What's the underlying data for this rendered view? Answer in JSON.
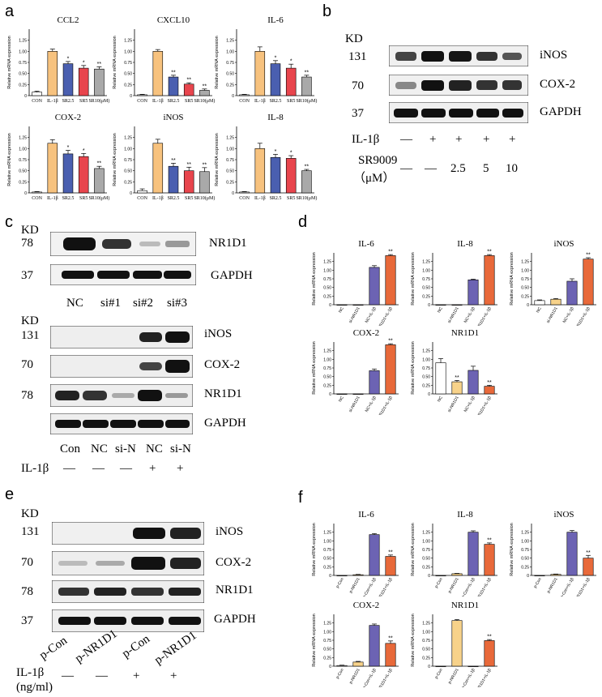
{
  "panels": {
    "a": "a",
    "b": "b",
    "c": "c",
    "d": "d",
    "e": "e",
    "f": "f"
  },
  "colors": {
    "con": "#ffffff",
    "il1b": "#f7c27e",
    "sr25": "#4a5fb0",
    "sr5": "#e8454d",
    "sr10": "#a9a9a9",
    "purple": "#6c63b3",
    "orange": "#e8693a",
    "yellowish": "#f7d28a"
  },
  "yaxis_label": "Relative mRNA expression",
  "ticks": [
    "0",
    "0.25",
    "0.50",
    "0.75",
    "1.00",
    "1.25"
  ],
  "group_a": {
    "categories": [
      "CON",
      "IL-1β",
      "SR2.5",
      "SR5",
      "SR10(μM)"
    ],
    "charts": [
      {
        "title": "CCL2",
        "values": [
          0.08,
          1.0,
          0.72,
          0.62,
          0.6
        ],
        "errors": [
          0.02,
          0.05,
          0.05,
          0.06,
          0.05
        ],
        "sig": [
          "",
          "",
          "*",
          "*",
          "**"
        ]
      },
      {
        "title": "CXCL10",
        "values": [
          0.02,
          1.0,
          0.42,
          0.26,
          0.12
        ],
        "errors": [
          0.01,
          0.04,
          0.04,
          0.03,
          0.03
        ],
        "sig": [
          "",
          "",
          "**",
          "**",
          "**"
        ]
      },
      {
        "title": "IL-6",
        "values": [
          0.02,
          1.0,
          0.72,
          0.62,
          0.42
        ],
        "errors": [
          0.01,
          0.1,
          0.07,
          0.09,
          0.04
        ],
        "sig": [
          "",
          "",
          "*",
          "*",
          "**"
        ]
      },
      {
        "title": "COX-2",
        "values": [
          0.02,
          1.12,
          0.88,
          0.82,
          0.55
        ],
        "errors": [
          0.01,
          0.08,
          0.08,
          0.07,
          0.05
        ],
        "sig": [
          "",
          "",
          "*",
          "*",
          "**"
        ]
      },
      {
        "title": "iNOS",
        "values": [
          0.05,
          1.12,
          0.6,
          0.5,
          0.48
        ],
        "errors": [
          0.04,
          0.09,
          0.07,
          0.08,
          0.09
        ],
        "sig": [
          "",
          "",
          "**",
          "**",
          "**"
        ]
      },
      {
        "title": "IL-8",
        "values": [
          0.02,
          1.0,
          0.8,
          0.78,
          0.5
        ],
        "errors": [
          0.01,
          0.12,
          0.07,
          0.06,
          0.03
        ],
        "sig": [
          "",
          "",
          "*",
          "*",
          "**"
        ]
      }
    ]
  },
  "group_d": {
    "categories": [
      "NC",
      "si-NR1D1",
      "NC+IL-1β",
      "si-NR1D1+IL-1β"
    ],
    "charts": [
      {
        "title": "IL-6",
        "values": [
          0.0,
          0.0,
          1.08,
          1.42
        ],
        "errors": [
          0,
          0,
          0.05,
          0.03
        ],
        "sig": [
          "",
          "",
          "",
          "**"
        ]
      },
      {
        "title": "IL-8",
        "values": [
          0.0,
          0.0,
          0.72,
          1.42
        ],
        "errors": [
          0,
          0,
          0.02,
          0.03
        ],
        "sig": [
          "",
          "",
          "",
          "**"
        ]
      },
      {
        "title": "iNOS",
        "values": [
          0.12,
          0.16,
          0.68,
          1.32
        ],
        "errors": [
          0.02,
          0.02,
          0.07,
          0.04
        ],
        "sig": [
          "",
          "",
          "",
          "**"
        ]
      },
      {
        "title": "COX-2",
        "values": [
          0.0,
          0.0,
          0.67,
          1.42
        ],
        "errors": [
          0,
          0,
          0.05,
          0.03
        ],
        "sig": [
          "",
          "",
          "",
          "**"
        ]
      },
      {
        "title": "NR1D1",
        "values": [
          0.9,
          0.35,
          0.68,
          0.22
        ],
        "errors": [
          0.12,
          0.04,
          0.12,
          0.03
        ],
        "sig": [
          "",
          "**",
          "",
          "**"
        ]
      }
    ]
  },
  "group_f": {
    "categories": [
      "p-Con",
      "p-NR1D1",
      "p-Con+IL-1β",
      "p-NR1D1+IL-1β"
    ],
    "charts": [
      {
        "title": "IL-6",
        "values": [
          0.0,
          0.02,
          1.18,
          0.55
        ],
        "errors": [
          0,
          0.01,
          0.03,
          0.04
        ],
        "sig": [
          "",
          "",
          "",
          "**"
        ]
      },
      {
        "title": "IL-8",
        "values": [
          0.0,
          0.05,
          1.25,
          0.9
        ],
        "errors": [
          0,
          0.01,
          0.04,
          0.04
        ],
        "sig": [
          "",
          "",
          "",
          "**"
        ]
      },
      {
        "title": "iNOS",
        "values": [
          0.0,
          0.03,
          1.25,
          0.5
        ],
        "errors": [
          0,
          0.01,
          0.05,
          0.08
        ],
        "sig": [
          "",
          "",
          "",
          "**"
        ]
      },
      {
        "title": "COX-2",
        "values": [
          0.02,
          0.12,
          1.18,
          0.66
        ],
        "errors": [
          0.01,
          0.02,
          0.04,
          0.07
        ],
        "sig": [
          "",
          "",
          "",
          "**"
        ]
      },
      {
        "title": "NR1D1",
        "values": [
          0.0,
          1.32,
          0.0,
          0.74
        ],
        "errors": [
          0,
          0.03,
          0,
          0.03
        ],
        "sig": [
          "",
          "",
          "",
          "**"
        ]
      }
    ]
  },
  "blot_b": {
    "kd_header": "KD",
    "bands": [
      {
        "kd": "131",
        "label": "iNOS"
      },
      {
        "kd": "70",
        "label": "COX-2"
      },
      {
        "kd": "37",
        "label": "GAPDH"
      }
    ],
    "il1b_label": "IL-1β",
    "il1b_values": [
      "—",
      "+",
      "+",
      "+",
      "+"
    ],
    "sr_label": "SR9009",
    "sr_unit": "（μM）",
    "sr_values": [
      "—",
      "—",
      "2.5",
      "5",
      "10"
    ]
  },
  "blot_c1": {
    "kd_header": "KD",
    "bands": [
      {
        "kd": "78",
        "label": "NR1D1"
      },
      {
        "kd": "37",
        "label": "GAPDH"
      }
    ],
    "lanes": [
      "NC",
      "si#1",
      "si#2",
      "si#3"
    ]
  },
  "blot_c2": {
    "bands": [
      {
        "kd": "131",
        "label": "iNOS"
      },
      {
        "kd": "70",
        "label": "COX-2"
      },
      {
        "kd": "78",
        "label": "NR1D1"
      },
      {
        "kd": "",
        "label": "GAPDH"
      }
    ],
    "lanes": [
      "Con",
      "NC",
      "si-N",
      "NC",
      "si-N"
    ],
    "il1b_label": "IL-1β",
    "il1b_values": [
      "—",
      "—",
      "—",
      "+",
      "+"
    ]
  },
  "blot_e": {
    "kd_header": "KD",
    "bands": [
      {
        "kd": "131",
        "label": "iNOS"
      },
      {
        "kd": "70",
        "label": "COX-2"
      },
      {
        "kd": "78",
        "label": "NR1D1"
      },
      {
        "kd": "37",
        "label": "GAPDH"
      }
    ],
    "lanes": [
      "p-Con",
      "p-NR1D1",
      "p-Con",
      "p-NR1D1"
    ],
    "il1b_label": "IL-1β",
    "il1b_unit": "(ng/ml)",
    "il1b_values": [
      "—",
      "—",
      "+",
      "+"
    ]
  }
}
